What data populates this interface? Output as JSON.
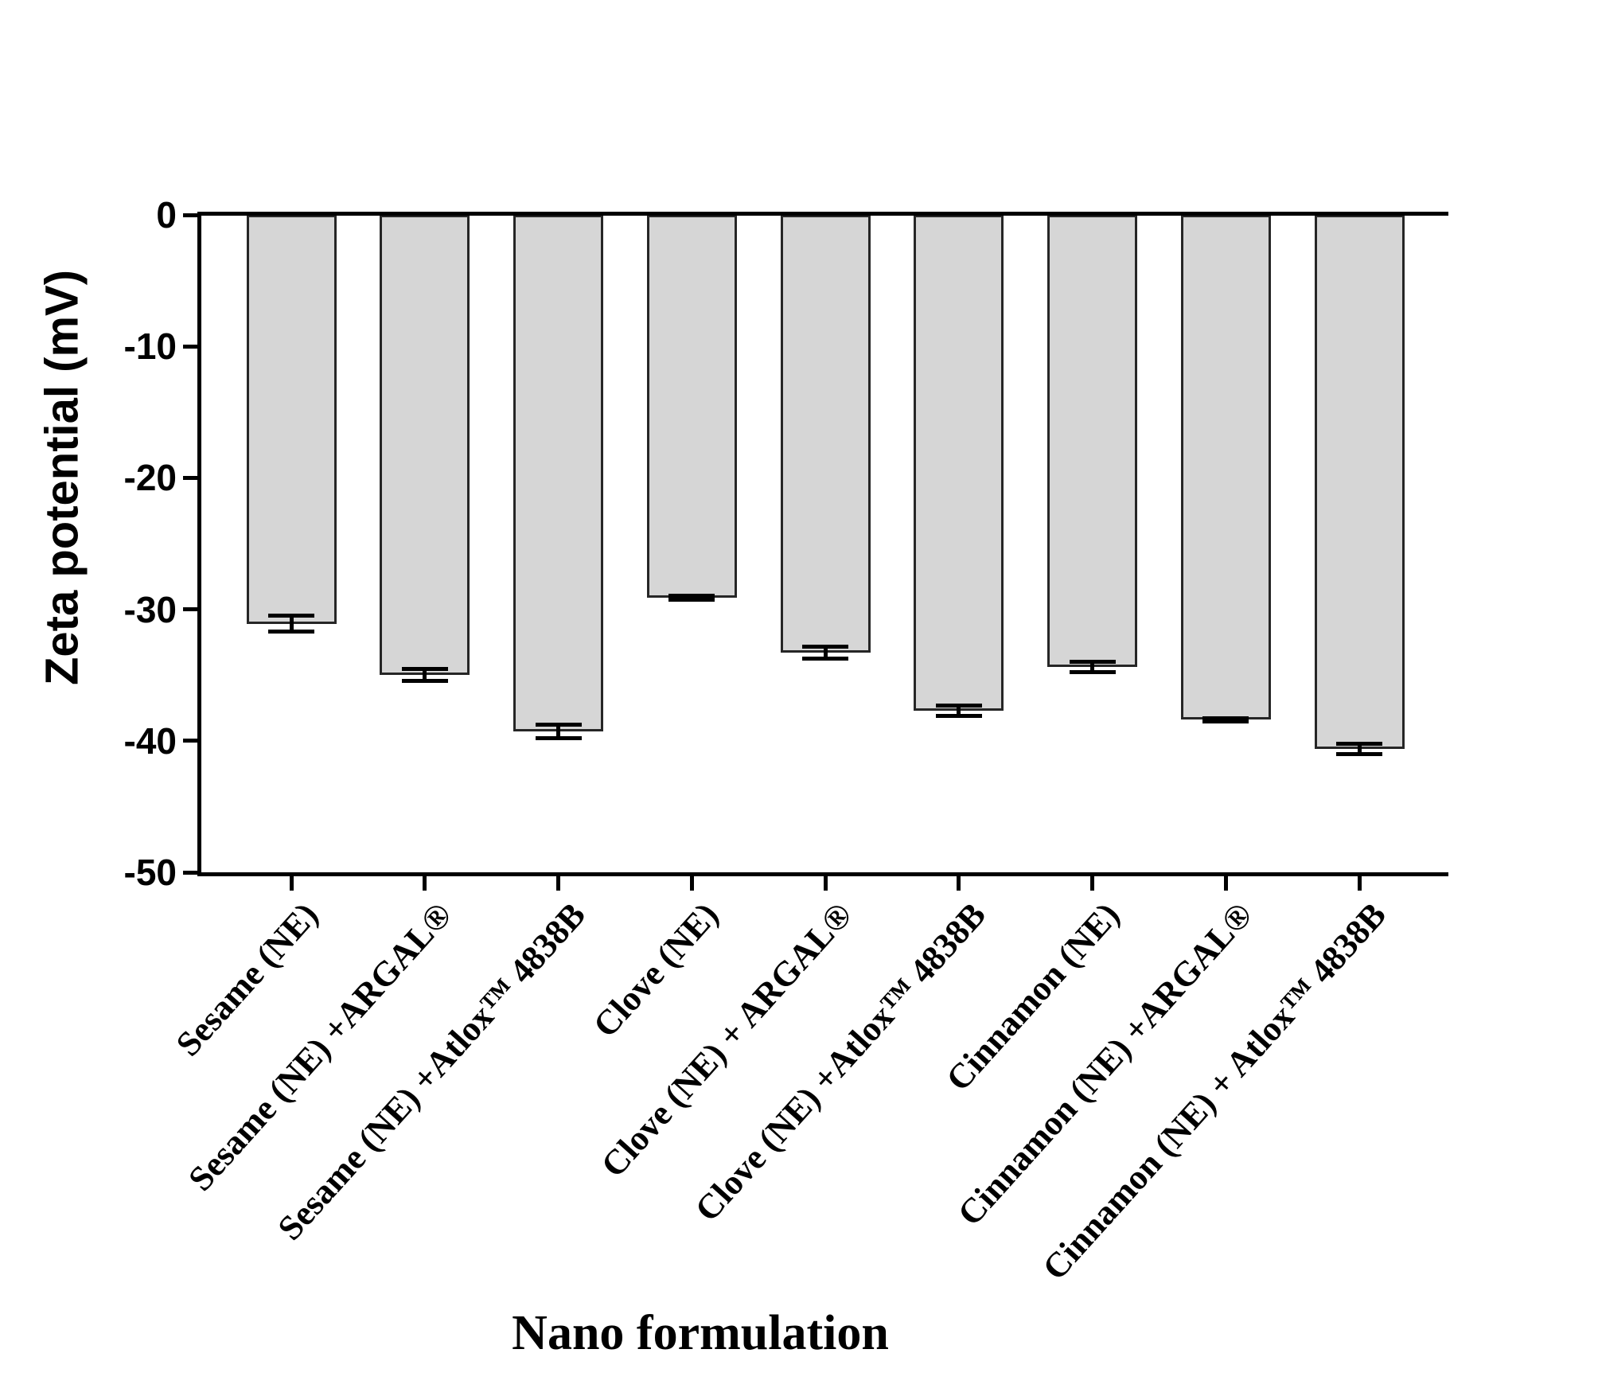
{
  "figure": {
    "background": "#ffffff",
    "axis_color": "#000000"
  },
  "chart_data": {
    "type": "bar",
    "title": "",
    "xlabel": "Nano formulation",
    "ylabel": "Zeta potential (mV)",
    "ylim": [
      0,
      -50
    ],
    "yticks": [
      0,
      -10,
      -20,
      -30,
      -40,
      -50
    ],
    "grid": false,
    "legend": false,
    "bar_color": "#d6d6d6",
    "bar_border_color": "#262626",
    "error_bar_color": "#000000",
    "error_bar_style": "mean ± SD, caps above and below bar end",
    "categories": [
      "Sesame (NE)",
      "Sesame (NE) +ARGAL®",
      "Sesame (NE) +Atlox™ 4838B",
      "Clove (NE)",
      "Clove (NE) + ARGAL®",
      "Clove (NE) +Atlox™ 4838B",
      "Cinnamon (NE)",
      "Cinnamon (NE) +ARGAL®",
      "Cinnamon (NE) + Atlox™ 4838B"
    ],
    "series": [
      {
        "name": "Zeta potential (mV)",
        "values": [
          -31.1,
          -35.0,
          -39.3,
          -29.1,
          -33.3,
          -37.7,
          -34.4,
          -38.4,
          -40.6
        ],
        "errors": [
          0.6,
          0.45,
          0.5,
          0.15,
          0.45,
          0.4,
          0.4,
          0.1,
          0.4
        ]
      }
    ]
  }
}
